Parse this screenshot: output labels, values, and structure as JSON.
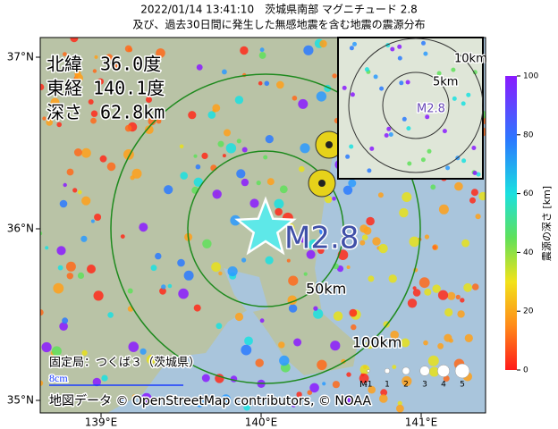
{
  "header": {
    "title": "2022/01/14 13:41:10　茨城県南部 マグニチュード 2.8",
    "subtitle": "及び、過去30日間に発生した無感地震を含む地震の震源分布"
  },
  "info": {
    "latitude": "北緯　36.0度",
    "longitude": "東経 140.1度",
    "depth": "深さ　62.8km"
  },
  "map": {
    "lat_ticks": [
      {
        "value": 37,
        "label": "37°N"
      },
      {
        "value": 36,
        "label": "36°N"
      },
      {
        "value": 35,
        "label": "35°N"
      }
    ],
    "lon_ticks": [
      {
        "value": 139,
        "label": "139°E"
      },
      {
        "value": 140,
        "label": "140°E"
      },
      {
        "value": 141,
        "label": "141°E"
      }
    ],
    "epicenter_label": "M2.8",
    "rings": [
      "50km",
      "100km"
    ],
    "station": "固定局：つくば３（茨城県）",
    "scale": "8cm",
    "attribution": "地図データ © OpenStreetMap contributors, © NOAA"
  },
  "inset": {
    "rings": [
      "10km",
      "5km"
    ],
    "label": "M2.8"
  },
  "colorbar": {
    "title": "震源の深さ [km]",
    "ticks": [
      0,
      20,
      40,
      60,
      80,
      100
    ]
  },
  "magnitude_legend": {
    "title": "M",
    "labels": [
      "-1",
      "1",
      "2",
      "3",
      "4",
      "5"
    ]
  }
}
